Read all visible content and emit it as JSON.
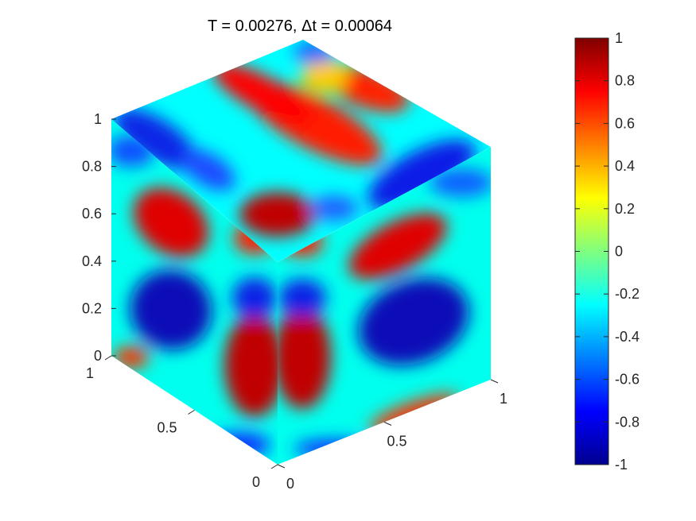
{
  "chart_data": {
    "type": "heatmap",
    "title": "T = 0.00276,  Δt = 0.00064",
    "plot_kind": "isometric cube surface plot (three visible faces: top, left x-z, right y-z)",
    "domain": {
      "x": [
        0,
        1
      ],
      "y": [
        0,
        1
      ],
      "z": [
        0,
        1
      ]
    },
    "x_ticks": [
      "0",
      "0.5",
      "1"
    ],
    "y_ticks": [
      "0",
      "0.5",
      "1"
    ],
    "z_ticks": [
      "0",
      "0.2",
      "0.4",
      "0.6",
      "0.8",
      "1"
    ],
    "colormap": "jet",
    "colorbar": {
      "position": "right",
      "range": [
        -1,
        1
      ],
      "ticks": [
        "1",
        "0.8",
        "0.6",
        "0.4",
        "0.2",
        "0",
        "-0.2",
        "-0.4",
        "-0.6",
        "-0.8",
        "-1"
      ]
    },
    "field_description": "phase field with values near +1 (red) and -1 (blue) separated by thin interfaces",
    "grid": false,
    "colors": {
      "high": "#800000",
      "mid": "#80ff80",
      "low": "#00008f"
    }
  }
}
